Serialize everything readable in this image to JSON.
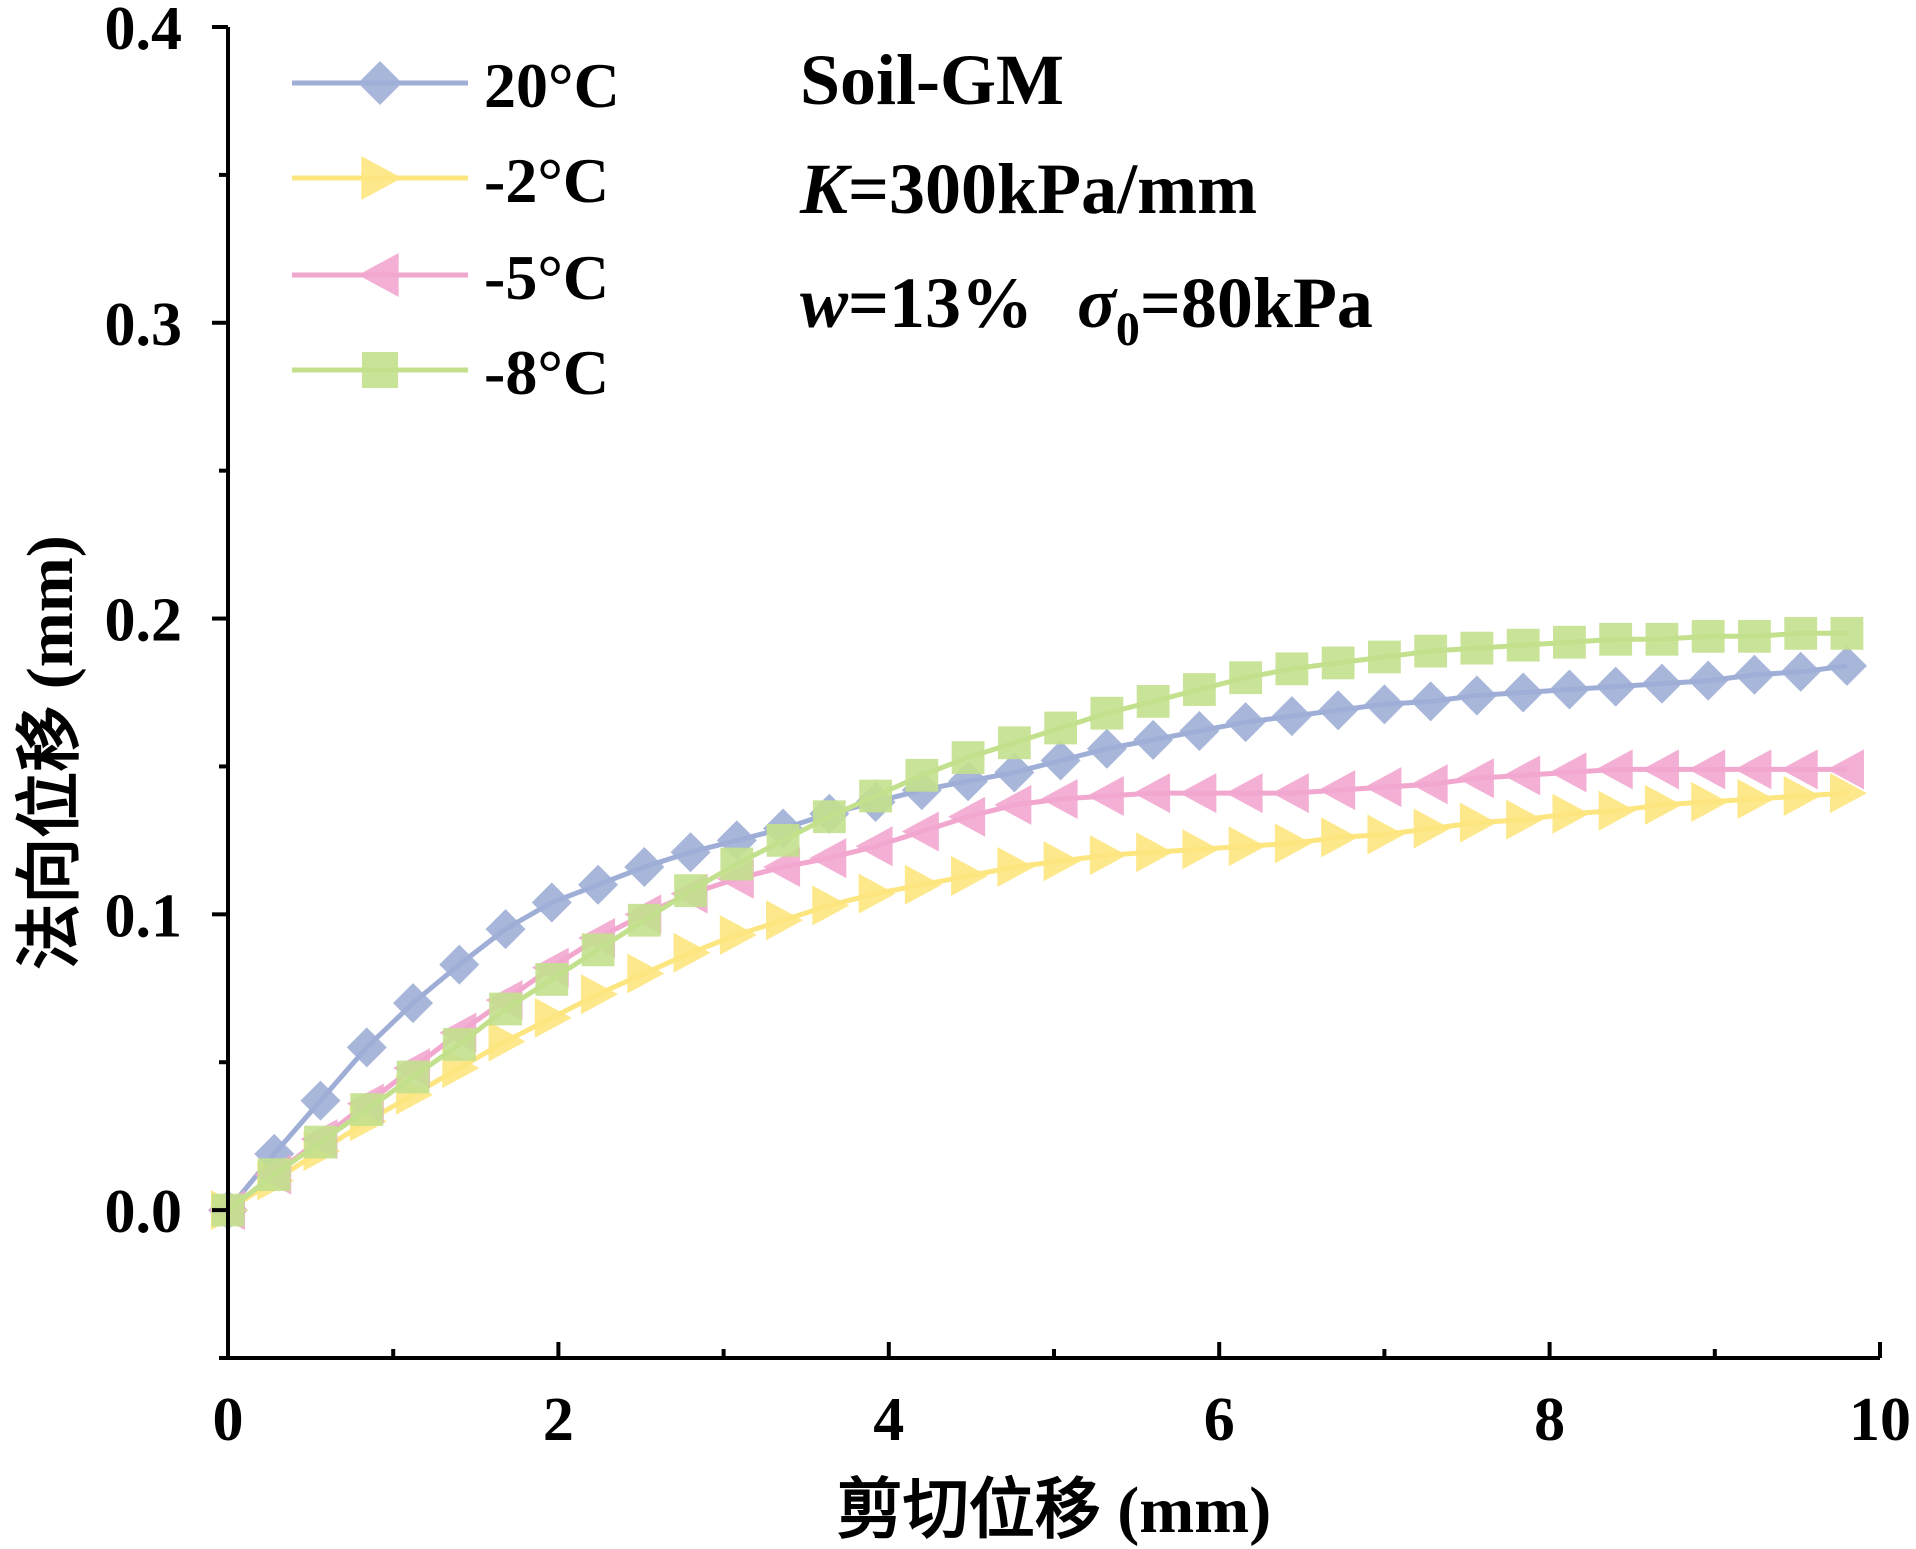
{
  "chart_data": {
    "type": "line",
    "xlabel": "剪切位移 (mm)",
    "ylabel": "法向位移 (mm)",
    "xlim": [
      0,
      10
    ],
    "ylim": [
      -0.05,
      0.4
    ],
    "x_ticks": [
      "0",
      "2",
      "4",
      "6",
      "8",
      "10"
    ],
    "y_ticks": [
      "0.0",
      "0.1",
      "0.2",
      "0.3",
      "0.4"
    ],
    "x_tick_values": [
      0,
      2,
      4,
      6,
      8,
      10
    ],
    "y_tick_values": [
      0.0,
      0.1,
      0.2,
      0.3,
      0.4
    ],
    "x_minor_step": 1,
    "y_minor_step": 0.05,
    "legend_position": "top-left",
    "annotations": {
      "line1": "Soil-GM",
      "line2_italic": "K",
      "line2_rest": "=300kPa/mm",
      "line3_w": "w",
      "line3_w_rest": "=13%",
      "line3_sigma": "σ",
      "line3_sigma_sub": "0",
      "line3_sigma_rest": "=80kPa"
    },
    "x": [
      0.0,
      0.28,
      0.56,
      0.84,
      1.12,
      1.4,
      1.68,
      1.96,
      2.24,
      2.52,
      2.8,
      3.08,
      3.36,
      3.64,
      3.92,
      4.2,
      4.48,
      4.76,
      5.04,
      5.32,
      5.6,
      5.88,
      6.16,
      6.44,
      6.72,
      7.0,
      7.28,
      7.56,
      7.84,
      8.12,
      8.4,
      8.68,
      8.96,
      9.24,
      9.52,
      9.8
    ],
    "series": [
      {
        "name": "20°C",
        "color": "#9faed6",
        "marker": "diamond",
        "values": [
          0.0,
          0.019,
          0.037,
          0.055,
          0.07,
          0.083,
          0.095,
          0.104,
          0.11,
          0.116,
          0.121,
          0.125,
          0.129,
          0.134,
          0.138,
          0.142,
          0.145,
          0.148,
          0.152,
          0.156,
          0.159,
          0.162,
          0.165,
          0.167,
          0.169,
          0.171,
          0.172,
          0.174,
          0.175,
          0.176,
          0.177,
          0.178,
          0.179,
          0.181,
          0.182,
          0.184
        ]
      },
      {
        "name": "-2°C",
        "color": "#fde67f",
        "marker": "triangle-right",
        "values": [
          0.0,
          0.01,
          0.02,
          0.03,
          0.039,
          0.048,
          0.057,
          0.065,
          0.073,
          0.08,
          0.087,
          0.093,
          0.098,
          0.103,
          0.107,
          0.11,
          0.113,
          0.116,
          0.118,
          0.12,
          0.121,
          0.122,
          0.123,
          0.124,
          0.126,
          0.127,
          0.129,
          0.131,
          0.132,
          0.134,
          0.135,
          0.137,
          0.138,
          0.139,
          0.14,
          0.141
        ]
      },
      {
        "name": "-5°C",
        "color": "#f2a7cf",
        "marker": "triangle-left",
        "values": [
          0.0,
          0.012,
          0.024,
          0.036,
          0.048,
          0.06,
          0.071,
          0.082,
          0.092,
          0.1,
          0.107,
          0.112,
          0.116,
          0.119,
          0.123,
          0.128,
          0.133,
          0.137,
          0.139,
          0.14,
          0.141,
          0.141,
          0.141,
          0.141,
          0.142,
          0.143,
          0.144,
          0.146,
          0.147,
          0.148,
          0.149,
          0.149,
          0.149,
          0.149,
          0.149,
          0.149
        ]
      },
      {
        "name": "-8°C",
        "color": "#c3e08d",
        "marker": "square",
        "values": [
          0.0,
          0.012,
          0.023,
          0.034,
          0.045,
          0.056,
          0.068,
          0.078,
          0.088,
          0.098,
          0.108,
          0.117,
          0.125,
          0.133,
          0.14,
          0.147,
          0.153,
          0.158,
          0.163,
          0.168,
          0.172,
          0.176,
          0.18,
          0.183,
          0.185,
          0.187,
          0.189,
          0.19,
          0.191,
          0.192,
          0.193,
          0.193,
          0.194,
          0.194,
          0.195,
          0.195
        ]
      }
    ]
  }
}
